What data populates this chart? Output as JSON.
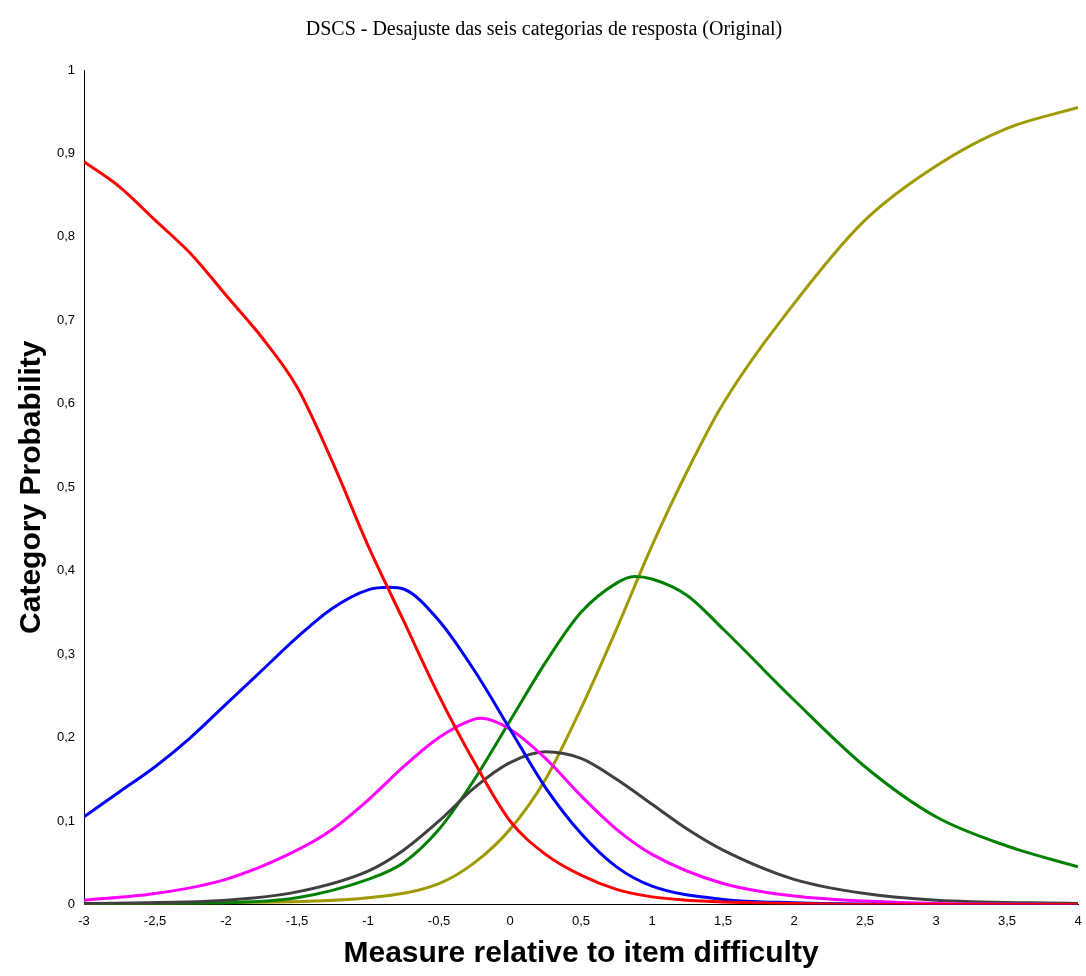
{
  "chart_data": {
    "type": "line",
    "title": "DSCS - Desajuste das seis categorias de resposta (Original)",
    "xlabel": "Measure relative to item difficulty",
    "ylabel": "Category Probability",
    "legend": false,
    "grid": false,
    "xlim": [
      -3,
      4
    ],
    "xticks": [
      -3,
      {
        "value": -2.5,
        "label": "-2,5"
      },
      -2,
      {
        "value": -1.5,
        "label": "-1,5"
      },
      -1,
      {
        "value": -0.5,
        "label": "-0,5"
      },
      0,
      {
        "value": 0.5,
        "label": "0,5"
      },
      1,
      {
        "value": 1.5,
        "label": "1,5"
      },
      2,
      {
        "value": 2.5,
        "label": "2,5"
      },
      3,
      {
        "value": 3.5,
        "label": "3,5"
      },
      4
    ],
    "ylim": [
      0,
      1
    ],
    "yticks": [
      0,
      {
        "value": 0.1,
        "label": "0,1"
      },
      {
        "value": 0.2,
        "label": "0,2"
      },
      {
        "value": 0.3,
        "label": "0,3"
      },
      {
        "value": 0.4,
        "label": "0,4"
      },
      {
        "value": 0.5,
        "label": "0,5"
      },
      {
        "value": 0.6,
        "label": "0,6"
      },
      {
        "value": 0.7,
        "label": "0,7"
      },
      {
        "value": 0.8,
        "label": "0,8"
      },
      {
        "value": 0.9,
        "label": "0,9"
      },
      1
    ],
    "series": [
      {
        "color": "#ff0000",
        "x": [
          -3,
          -2.75,
          -2.5,
          -2.25,
          -2,
          -1.75,
          -1.5,
          -1.25,
          -1,
          -0.75,
          -0.5,
          -0.25,
          0,
          0.25,
          0.5,
          0.75,
          1,
          1.25,
          1.5,
          2,
          2.5,
          3,
          4
        ],
        "values": [
          0.89,
          0.86,
          0.82,
          0.78,
          0.73,
          0.68,
          0.62,
          0.53,
          0.43,
          0.34,
          0.25,
          0.17,
          0.1,
          0.06,
          0.035,
          0.018,
          0.009,
          0.005,
          0.003,
          0.001,
          0,
          0,
          0
        ]
      },
      {
        "color": "#0000ff",
        "x": [
          -3,
          -2.75,
          -2.5,
          -2.25,
          -2,
          -1.75,
          -1.5,
          -1.25,
          -1,
          -0.85,
          -0.75,
          -0.5,
          -0.25,
          0,
          0.25,
          0.5,
          0.75,
          1,
          1.5,
          2,
          3,
          4
        ],
        "values": [
          0.105,
          0.135,
          0.165,
          0.2,
          0.24,
          0.28,
          0.32,
          0.355,
          0.377,
          0.38,
          0.378,
          0.34,
          0.28,
          0.21,
          0.14,
          0.085,
          0.045,
          0.022,
          0.006,
          0.002,
          0,
          0
        ]
      },
      {
        "color": "#ff00ff",
        "x": [
          -3,
          -2.5,
          -2,
          -1.5,
          -1.25,
          -1,
          -0.75,
          -0.5,
          -0.25,
          -0.2,
          0,
          0.25,
          0.5,
          0.75,
          1,
          1.5,
          2,
          2.5,
          3,
          4
        ],
        "values": [
          0.005,
          0.013,
          0.03,
          0.065,
          0.09,
          0.125,
          0.165,
          0.2,
          0.222,
          0.223,
          0.21,
          0.175,
          0.13,
          0.09,
          0.06,
          0.025,
          0.01,
          0.004,
          0.001,
          0
        ]
      },
      {
        "color": "#404040",
        "x": [
          -3,
          -2,
          -1.5,
          -1,
          -0.75,
          -0.5,
          -0.25,
          0,
          0.25,
          0.5,
          0.75,
          1,
          1.25,
          1.5,
          2,
          2.5,
          3,
          4
        ],
        "values": [
          0.001,
          0.005,
          0.015,
          0.04,
          0.065,
          0.1,
          0.14,
          0.17,
          0.183,
          0.175,
          0.15,
          0.12,
          0.09,
          0.065,
          0.03,
          0.013,
          0.005,
          0.001
        ]
      },
      {
        "color": "#008000",
        "x": [
          -3,
          -2,
          -1.5,
          -1,
          -0.75,
          -0.5,
          -0.25,
          0,
          0.25,
          0.5,
          0.75,
          0.875,
          1,
          1.25,
          1.5,
          2,
          2.5,
          3,
          3.5,
          4
        ],
        "values": [
          0,
          0.002,
          0.008,
          0.03,
          0.05,
          0.09,
          0.15,
          0.22,
          0.29,
          0.35,
          0.385,
          0.393,
          0.39,
          0.37,
          0.33,
          0.245,
          0.165,
          0.105,
          0.07,
          0.045
        ]
      },
      {
        "color": "#a09a00",
        "x": [
          -3,
          -2,
          -1,
          -0.5,
          -0.25,
          0,
          0.25,
          0.5,
          0.75,
          1,
          1.25,
          1.5,
          2,
          2.5,
          3,
          3.5,
          4
        ],
        "values": [
          0,
          0.002,
          0.008,
          0.025,
          0.05,
          0.09,
          0.15,
          0.235,
          0.33,
          0.43,
          0.52,
          0.6,
          0.72,
          0.82,
          0.885,
          0.93,
          0.955
        ]
      }
    ]
  }
}
